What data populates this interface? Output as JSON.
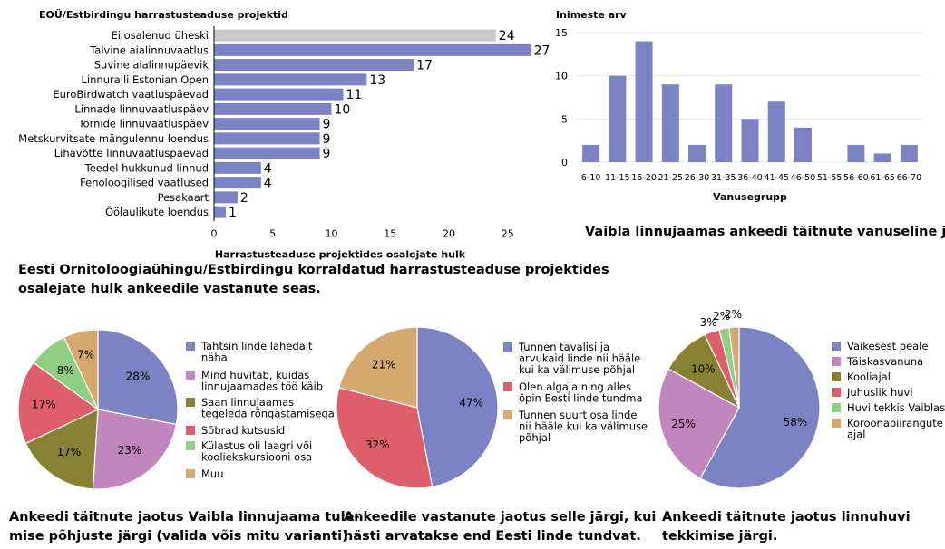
{
  "colors": {
    "bar": "#7b83c4",
    "bar_highlight": "#c8c8c8",
    "pie1": [
      "#7b83c4",
      "#c286bf",
      "#878231",
      "#de5e6c",
      "#8fcf84",
      "#d5a86e"
    ],
    "pie2": [
      "#7b83c4",
      "#de5e6c",
      "#d5a86e"
    ],
    "pie3": [
      "#7b83c4",
      "#c286bf",
      "#878231",
      "#de5e6c",
      "#8fcf84",
      "#d5a86e"
    ]
  },
  "chart_data": [
    {
      "id": "projects",
      "type": "bar",
      "orientation": "horizontal",
      "title": "EOÜ/Estbirdingu harrastusteaduse projektid",
      "xlabel": "Harrastusteaduse projektides osalejate hulk",
      "xlim": [
        0,
        27
      ],
      "xticks": [
        0,
        5,
        10,
        15,
        20,
        25
      ],
      "grid": false,
      "categories": [
        "Ei osalenud üheski",
        "Talvine aialinnuvaatlus",
        "Suvine aialinnupäevik",
        "Linnuralli Estonian Open",
        "EuroBirdwatch vaatluspäevad",
        "Linnade linnuvaatluspäev",
        "Tornide linnuvaatluspäev",
        "Metskurvitsate mängulennu loendus",
        "Lihavõtte linnuvaatluspäevad",
        "Teedel hukkunud linnud",
        "Fenoloogilised vaatlused",
        "Pesakaart",
        "Öölaulikute loendus"
      ],
      "values": [
        24,
        27,
        17,
        13,
        11,
        10,
        9,
        9,
        9,
        4,
        4,
        2,
        1
      ],
      "highlight": [
        0
      ],
      "caption": "Eesti Ornitoloogiaühingu/Estbirdingu korraldatud harrastusteaduse projektides osalejate hulk ankeedile vastanute seas."
    },
    {
      "id": "age",
      "type": "bar",
      "title": "Inimeste arv",
      "xlabel": "Vanusegrupp",
      "ylim": [
        0,
        15
      ],
      "yticks": [
        0,
        5,
        10,
        15
      ],
      "grid": true,
      "categories": [
        "6-10",
        "11-15",
        "16-20",
        "21-25",
        "26-30",
        "31-35",
        "36-40",
        "41-45",
        "46-50",
        "51-55",
        "56-60",
        "61-65",
        "66-70"
      ],
      "values": [
        2,
        10,
        14,
        9,
        2,
        9,
        5,
        7,
        4,
        0,
        2,
        1,
        2
      ],
      "caption": "Vaibla linnujaamas ankeedi täitnute vanuseline jaotus."
    },
    {
      "id": "reasons",
      "type": "pie",
      "labels": [
        "Tahtsin linde lähedalt näha",
        "Mind huvitab, kuidas linnujaamades töö käib",
        "Saan linnujaamas tegeleda rõngastamisega",
        "Sõbrad kutsusid",
        "Külastus oli laagri või kooliekskursiooni osa",
        "Muu"
      ],
      "values": [
        28,
        23,
        17,
        17,
        8,
        7
      ],
      "value_labels": [
        "28%",
        "23%",
        "17%",
        "17%",
        "8%",
        "7%"
      ],
      "caption": "Ankeedi täitnute jaotus Vaibla linnujaama tulemise põhjuste järgi (valida võis mitu varianti)."
    },
    {
      "id": "knowledge",
      "type": "pie",
      "labels": [
        "Tunnen tavalisi ja arvukaid linde nii hääle kui ka välimuse põhjal",
        "Olen algaja ning alles õpin Eesti linde tundma",
        "Tunnen suurt osa linde nii hääle kui ka välimuse põhjal"
      ],
      "values": [
        47,
        32,
        21
      ],
      "value_labels": [
        "47%",
        "32%",
        "21%"
      ],
      "caption": "Ankeedile vastanute jaotus selle järgi, kui hästi arvatakse end Eesti linde tundvat."
    },
    {
      "id": "origin",
      "type": "pie",
      "labels": [
        "Väikesest peale",
        "Täiskasvanuna",
        "Kooliajal",
        "Juhuslik huvi",
        "Huvi tekkis Vaiblas",
        "Koroonapiirangute ajal"
      ],
      "values": [
        58,
        25,
        10,
        3,
        2,
        2
      ],
      "value_labels": [
        "58%",
        "25%",
        "10%",
        "3%",
        "2%",
        "2%"
      ],
      "caption": "Ankeedi täitnute jaotus linnuhuvi tekkimise järgi."
    }
  ]
}
